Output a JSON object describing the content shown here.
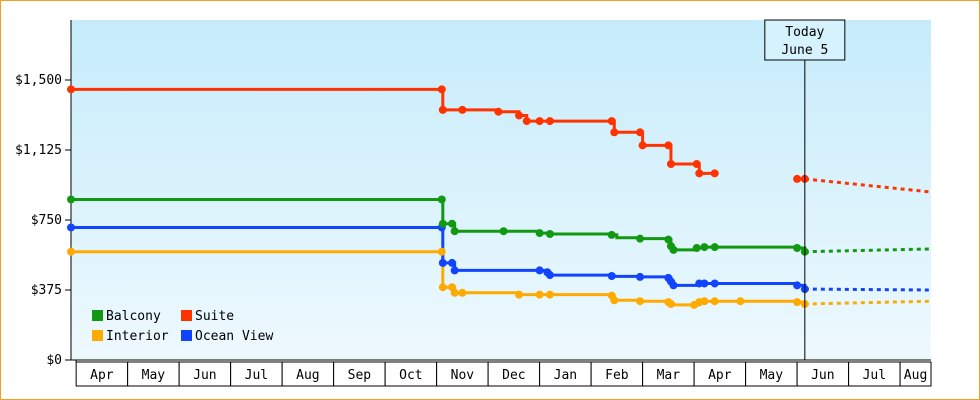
{
  "chart_data": {
    "type": "line",
    "title": "",
    "xlabel": "",
    "ylabel": "",
    "ylim": [
      0,
      1500
    ],
    "y_ticks": [
      "$0",
      "$375",
      "$750",
      "$1,125",
      "$1,500"
    ],
    "y_tick_values": [
      0,
      375,
      750,
      1125,
      1500
    ],
    "x_tick_labels": [
      "Apr",
      "May",
      "Jun",
      "Jul",
      "Aug",
      "Sep",
      "Oct",
      "Nov",
      "Dec",
      "Jan",
      "Feb",
      "Mar",
      "Apr",
      "May",
      "Jun",
      "Jul",
      "Aug"
    ],
    "x_tick_months": [
      0,
      1,
      2,
      3,
      4,
      5,
      6,
      7,
      8,
      9,
      10,
      11,
      12,
      13,
      14,
      15,
      16
    ],
    "x_unit": "months from Apr 1",
    "xlim": [
      -0.1,
      16.6
    ],
    "legend_position": "bottom-left",
    "grid": false,
    "today_marker": {
      "label_line1": "Today",
      "label_line2": "June 5",
      "x": 14.15
    },
    "series": [
      {
        "name": "Suite",
        "color": "#ff3300",
        "points": [
          [
            -0.1,
            1450
          ],
          [
            7.1,
            1450
          ],
          [
            7.12,
            1340
          ],
          [
            7.5,
            1340
          ],
          [
            8.2,
            1330
          ],
          [
            8.6,
            1310
          ],
          [
            8.75,
            1280
          ],
          [
            9.0,
            1280
          ],
          [
            9.2,
            1280
          ],
          [
            10.4,
            1280
          ],
          [
            10.45,
            1220
          ],
          [
            10.95,
            1220
          ],
          [
            11.0,
            1150
          ],
          [
            11.5,
            1150
          ],
          [
            11.55,
            1050
          ],
          [
            12.05,
            1050
          ],
          [
            12.1,
            1000
          ],
          [
            12.4,
            1000
          ]
        ],
        "forecast": [
          [
            14.0,
            970
          ],
          [
            14.15,
            970
          ],
          [
            16.6,
            900
          ]
        ]
      },
      {
        "name": "Balcony",
        "color": "#119911",
        "points": [
          [
            -0.1,
            860
          ],
          [
            7.1,
            860
          ],
          [
            7.12,
            730
          ],
          [
            7.3,
            730
          ],
          [
            7.35,
            690
          ],
          [
            8.3,
            690
          ],
          [
            9.0,
            680
          ],
          [
            9.2,
            675
          ],
          [
            10.4,
            670
          ],
          [
            10.5,
            655
          ],
          [
            10.95,
            650
          ],
          [
            11.5,
            645
          ],
          [
            11.55,
            610
          ],
          [
            11.6,
            590
          ],
          [
            12.0,
            590
          ],
          [
            12.05,
            600
          ],
          [
            12.2,
            605
          ],
          [
            12.4,
            605
          ],
          [
            14.0,
            600
          ],
          [
            14.15,
            580
          ]
        ],
        "forecast": [
          [
            14.15,
            580
          ],
          [
            16.6,
            595
          ]
        ]
      },
      {
        "name": "Ocean View",
        "color": "#1144ff",
        "points": [
          [
            -0.1,
            710
          ],
          [
            7.1,
            710
          ],
          [
            7.12,
            520
          ],
          [
            7.3,
            520
          ],
          [
            7.35,
            480
          ],
          [
            9.0,
            480
          ],
          [
            9.15,
            470
          ],
          [
            9.2,
            455
          ],
          [
            10.4,
            450
          ],
          [
            10.45,
            448
          ],
          [
            10.95,
            445
          ],
          [
            11.5,
            440
          ],
          [
            11.55,
            420
          ],
          [
            11.6,
            400
          ],
          [
            12.0,
            400
          ],
          [
            12.1,
            410
          ],
          [
            12.4,
            410
          ],
          [
            14.0,
            400
          ],
          [
            14.15,
            380
          ]
        ],
        "forecast": [
          [
            14.15,
            380
          ],
          [
            16.6,
            375
          ]
        ]
      },
      {
        "name": "Interior",
        "color": "#ffaa00",
        "points": [
          [
            -0.1,
            580
          ],
          [
            7.1,
            580
          ],
          [
            7.12,
            390
          ],
          [
            7.3,
            390
          ],
          [
            7.35,
            360
          ],
          [
            7.5,
            360
          ],
          [
            8.6,
            350
          ],
          [
            9.0,
            350
          ],
          [
            9.2,
            350
          ],
          [
            10.4,
            345
          ],
          [
            10.45,
            320
          ],
          [
            10.95,
            315
          ],
          [
            11.5,
            310
          ],
          [
            11.55,
            300
          ],
          [
            11.6,
            295
          ],
          [
            12.0,
            295
          ],
          [
            12.1,
            310
          ],
          [
            12.2,
            315
          ],
          [
            12.4,
            315
          ],
          [
            12.9,
            315
          ],
          [
            14.0,
            310
          ],
          [
            14.15,
            300
          ]
        ],
        "forecast": [
          [
            14.15,
            300
          ],
          [
            16.6,
            315
          ]
        ]
      }
    ],
    "marker_points": {
      "Suite": [
        [
          -0.1,
          1450
        ],
        [
          7.1,
          1450
        ],
        [
          7.12,
          1340
        ],
        [
          7.5,
          1340
        ],
        [
          8.2,
          1330
        ],
        [
          8.6,
          1310
        ],
        [
          8.75,
          1280
        ],
        [
          9.0,
          1280
        ],
        [
          9.2,
          1280
        ],
        [
          10.4,
          1280
        ],
        [
          10.45,
          1220
        ],
        [
          10.95,
          1220
        ],
        [
          11.0,
          1150
        ],
        [
          11.5,
          1150
        ],
        [
          11.55,
          1050
        ],
        [
          12.05,
          1050
        ],
        [
          12.1,
          1000
        ],
        [
          12.4,
          1000
        ],
        [
          14.0,
          970
        ],
        [
          14.15,
          970
        ]
      ],
      "Balcony": [
        [
          -0.1,
          860
        ],
        [
          7.1,
          860
        ],
        [
          7.12,
          730
        ],
        [
          7.3,
          730
        ],
        [
          7.35,
          690
        ],
        [
          8.3,
          690
        ],
        [
          9.0,
          680
        ],
        [
          9.2,
          675
        ],
        [
          10.4,
          670
        ],
        [
          10.95,
          650
        ],
        [
          11.5,
          645
        ],
        [
          11.55,
          610
        ],
        [
          11.6,
          590
        ],
        [
          12.05,
          600
        ],
        [
          12.2,
          605
        ],
        [
          12.4,
          605
        ],
        [
          14.0,
          600
        ],
        [
          14.15,
          580
        ]
      ],
      "Ocean View": [
        [
          -0.1,
          710
        ],
        [
          7.1,
          710
        ],
        [
          7.12,
          520
        ],
        [
          7.3,
          520
        ],
        [
          7.35,
          480
        ],
        [
          9.0,
          480
        ],
        [
          9.15,
          470
        ],
        [
          9.2,
          455
        ],
        [
          10.4,
          450
        ],
        [
          10.95,
          445
        ],
        [
          11.5,
          440
        ],
        [
          11.55,
          420
        ],
        [
          11.6,
          400
        ],
        [
          12.1,
          410
        ],
        [
          12.2,
          410
        ],
        [
          12.4,
          410
        ],
        [
          14.0,
          400
        ],
        [
          14.15,
          380
        ]
      ],
      "Interior": [
        [
          -0.1,
          580
        ],
        [
          7.1,
          580
        ],
        [
          7.12,
          390
        ],
        [
          7.3,
          390
        ],
        [
          7.35,
          360
        ],
        [
          7.5,
          360
        ],
        [
          8.6,
          350
        ],
        [
          9.0,
          350
        ],
        [
          9.2,
          350
        ],
        [
          10.4,
          345
        ],
        [
          10.45,
          320
        ],
        [
          10.95,
          315
        ],
        [
          11.5,
          310
        ],
        [
          11.55,
          300
        ],
        [
          12.0,
          295
        ],
        [
          12.1,
          310
        ],
        [
          12.2,
          315
        ],
        [
          12.4,
          315
        ],
        [
          12.9,
          315
        ],
        [
          14.0,
          310
        ],
        [
          14.15,
          300
        ]
      ]
    },
    "legend": [
      {
        "name": "Balcony",
        "color": "#119911"
      },
      {
        "name": "Suite",
        "color": "#ff3300"
      },
      {
        "name": "Interior",
        "color": "#ffaa00"
      },
      {
        "name": "Ocean View",
        "color": "#1144ff"
      }
    ]
  }
}
